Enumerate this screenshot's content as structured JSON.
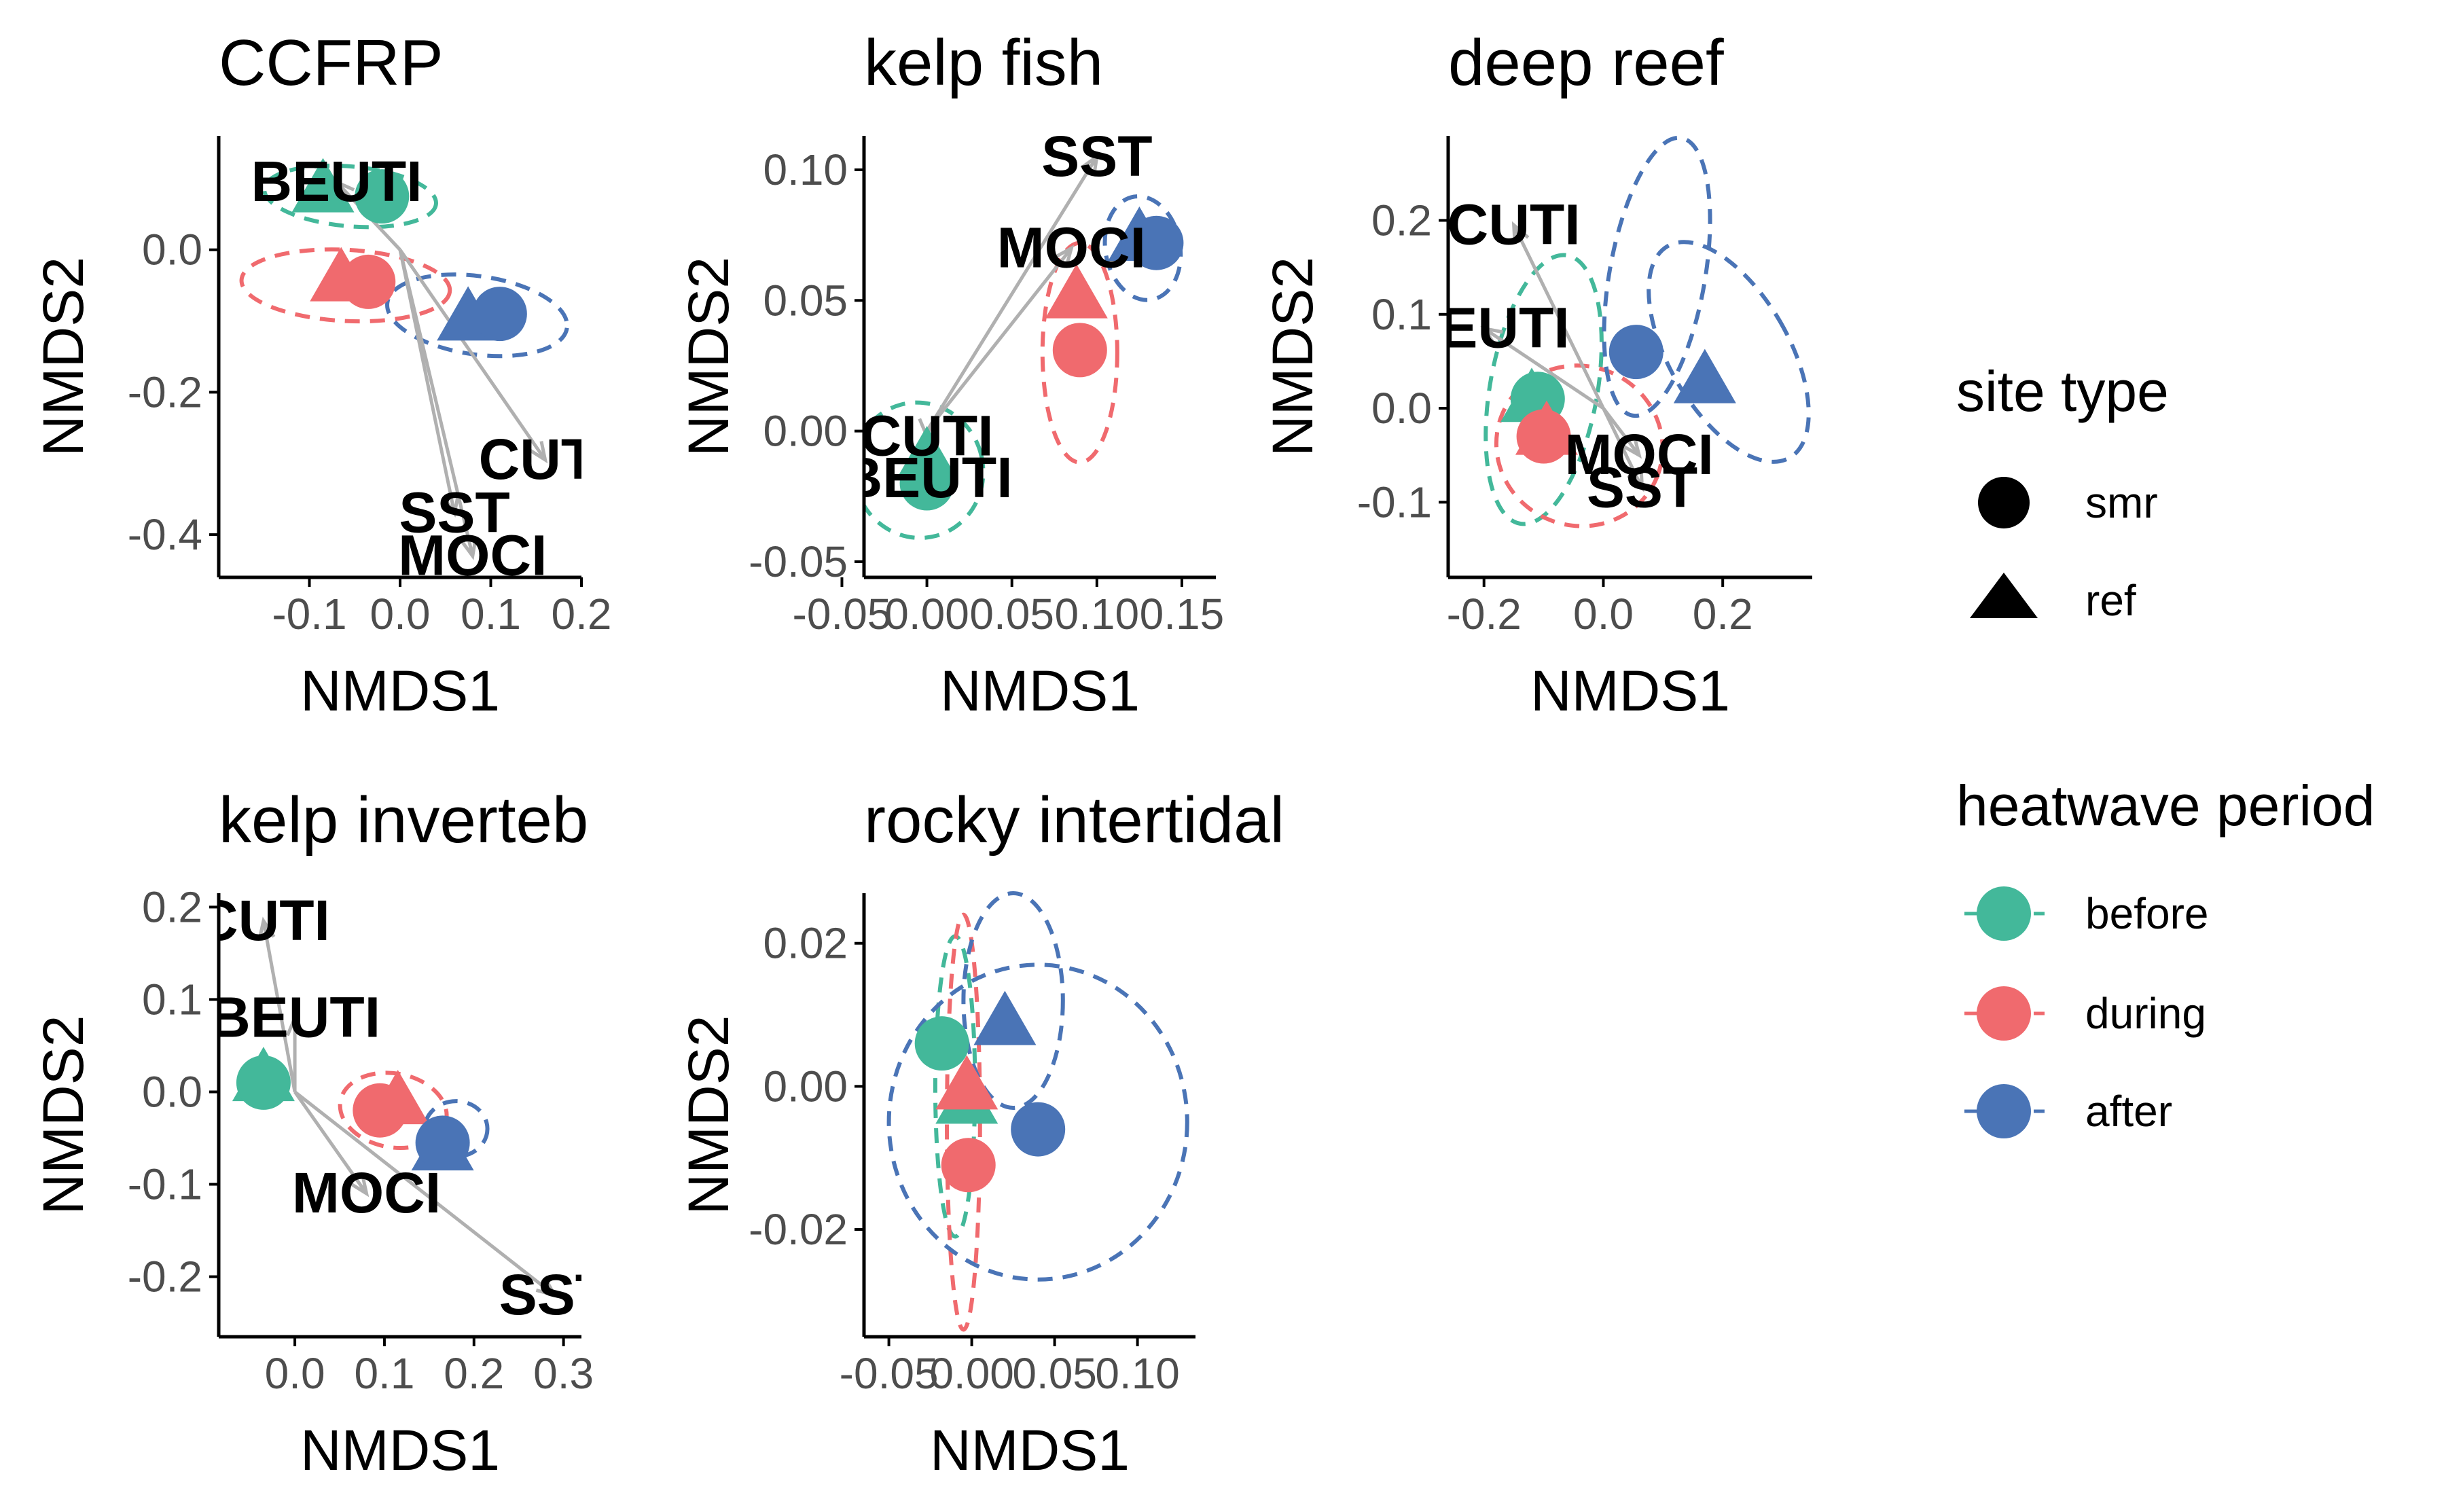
{
  "colors": {
    "before": "#43B89A",
    "during": "#F06A6E",
    "after": "#4A74B6",
    "arrow": "#b0b0b0",
    "axis": "#000000",
    "tick_text": "#4d4d4d"
  },
  "legend": {
    "shape_title": "site type",
    "shape_items": [
      {
        "label": "smr",
        "shape": "circle"
      },
      {
        "label": "ref",
        "shape": "triangle"
      }
    ],
    "color_title": "heatwave period",
    "color_items": [
      {
        "label": "before",
        "color_key": "before"
      },
      {
        "label": "during",
        "color_key": "during"
      },
      {
        "label": "after",
        "color_key": "after"
      }
    ]
  },
  "chart_data": [
    {
      "type": "scatter",
      "title": "CCFRP",
      "xlabel": "NMDS1",
      "ylabel": "NMDS2",
      "xlim": [
        -0.2,
        0.2
      ],
      "ylim": [
        -0.46,
        0.16
      ],
      "xticks": [
        -0.1,
        0.0,
        0.1,
        0.2
      ],
      "xtick_labels": [
        "-0.1",
        "0.0",
        "0.1",
        "0.2"
      ],
      "yticks": [
        -0.4,
        -0.2,
        0.0
      ],
      "ytick_labels": [
        "-0.4",
        "-0.2",
        "0.0"
      ],
      "points": [
        {
          "period": "before",
          "site": "ref",
          "x": -0.085,
          "y": 0.085
        },
        {
          "period": "before",
          "site": "smr",
          "x": -0.02,
          "y": 0.075
        },
        {
          "period": "during",
          "site": "ref",
          "x": -0.065,
          "y": -0.04
        },
        {
          "period": "during",
          "site": "smr",
          "x": -0.035,
          "y": -0.045
        },
        {
          "period": "after",
          "site": "ref",
          "x": 0.075,
          "y": -0.095
        },
        {
          "period": "after",
          "site": "smr",
          "x": 0.11,
          "y": -0.09
        }
      ],
      "ellipses": [
        {
          "period": "before",
          "cx": -0.055,
          "cy": 0.075,
          "rx": 0.095,
          "ry": 0.042,
          "rot": -5
        },
        {
          "period": "during",
          "cx": -0.06,
          "cy": -0.05,
          "rx": 0.115,
          "ry": 0.05,
          "rot": -3
        },
        {
          "period": "after",
          "cx": 0.085,
          "cy": -0.092,
          "rx": 0.1,
          "ry": 0.055,
          "rot": -8
        }
      ],
      "vectors": [
        {
          "label": "BEUTI",
          "x": -0.07,
          "y": 0.095
        },
        {
          "label": "CUTI",
          "x": 0.16,
          "y": -0.295
        },
        {
          "label": "SST",
          "x": 0.06,
          "y": -0.37
        },
        {
          "label": "MOCI",
          "x": 0.08,
          "y": -0.43
        }
      ]
    },
    {
      "type": "scatter",
      "title": "kelp fish",
      "xlabel": "NMDS1",
      "ylabel": "NMDS2",
      "xlim": [
        -0.037,
        0.17
      ],
      "ylim": [
        -0.056,
        0.113
      ],
      "xticks": [
        -0.05,
        0.0,
        0.05,
        0.1,
        0.15
      ],
      "xtick_labels": [
        "-0.05",
        "0.00",
        "0.05",
        "0.10",
        "0.15"
      ],
      "yticks": [
        -0.05,
        0.0,
        0.05,
        0.1
      ],
      "ytick_labels": [
        "-0.05",
        "0.00",
        "0.05",
        "0.10"
      ],
      "points": [
        {
          "period": "before",
          "site": "ref",
          "x": -0.0,
          "y": -0.01
        },
        {
          "period": "before",
          "site": "smr",
          "x": 0.0,
          "y": -0.02
        },
        {
          "period": "during",
          "site": "ref",
          "x": 0.088,
          "y": 0.052
        },
        {
          "period": "during",
          "site": "smr",
          "x": 0.09,
          "y": 0.031
        },
        {
          "period": "after",
          "site": "ref",
          "x": 0.125,
          "y": 0.074
        },
        {
          "period": "after",
          "site": "smr",
          "x": 0.135,
          "y": 0.072
        }
      ],
      "ellipses": [
        {
          "period": "before",
          "cx": -0.005,
          "cy": -0.015,
          "rx": 0.038,
          "ry": 0.026,
          "rot": 15
        },
        {
          "period": "during",
          "cx": 0.09,
          "cy": 0.03,
          "rx": 0.022,
          "ry": 0.042,
          "rot": 0
        },
        {
          "period": "after",
          "cx": 0.127,
          "cy": 0.07,
          "rx": 0.022,
          "ry": 0.02,
          "rot": 10
        }
      ],
      "vectors": [
        {
          "label": "SST",
          "x": 0.1,
          "y": 0.105
        },
        {
          "label": "MOCI",
          "x": 0.085,
          "y": 0.07
        },
        {
          "label": "CUTI",
          "x": 0.0,
          "y": -0.002
        },
        {
          "label": "BEUTI",
          "x": 0.0,
          "y": -0.018
        }
      ]
    },
    {
      "type": "scatter",
      "title": "deep reef",
      "xlabel": "NMDS1",
      "ylabel": "NMDS2",
      "xlim": [
        -0.26,
        0.35
      ],
      "ylim": [
        -0.18,
        0.29
      ],
      "xticks": [
        -0.2,
        0.0,
        0.2
      ],
      "xtick_labels": [
        "-0.2",
        "0.0",
        "0.2"
      ],
      "yticks": [
        -0.1,
        0.0,
        0.1,
        0.2
      ],
      "ytick_labels": [
        "-0.1",
        "0.0",
        "0.1",
        "0.2"
      ],
      "points": [
        {
          "period": "before",
          "site": "ref",
          "x": -0.12,
          "y": 0.01
        },
        {
          "period": "before",
          "site": "smr",
          "x": -0.11,
          "y": 0.01
        },
        {
          "period": "during",
          "site": "ref",
          "x": -0.095,
          "y": -0.025
        },
        {
          "period": "during",
          "site": "smr",
          "x": -0.1,
          "y": -0.03
        },
        {
          "period": "after",
          "site": "ref",
          "x": 0.17,
          "y": 0.03
        },
        {
          "period": "after",
          "site": "smr",
          "x": 0.055,
          "y": 0.06
        }
      ],
      "ellipses": [
        {
          "period": "before",
          "cx": -0.1,
          "cy": 0.02,
          "rx": 0.09,
          "ry": 0.145,
          "rot": -10
        },
        {
          "period": "during",
          "cx": -0.04,
          "cy": -0.04,
          "rx": 0.14,
          "ry": 0.085,
          "rot": -20
        },
        {
          "period": "after",
          "cx": 0.09,
          "cy": 0.14,
          "rx": 0.08,
          "ry": 0.15,
          "rot": -10
        },
        {
          "period": "after",
          "cx": 0.21,
          "cy": 0.06,
          "rx": 0.1,
          "ry": 0.13,
          "rot": 30
        }
      ],
      "vectors": [
        {
          "label": "CUTI",
          "x": -0.15,
          "y": 0.195
        },
        {
          "label": "BEUTI",
          "x": -0.2,
          "y": 0.085
        },
        {
          "label": "MOCI",
          "x": 0.06,
          "y": -0.05
        },
        {
          "label": "SST",
          "x": 0.065,
          "y": -0.085
        }
      ]
    },
    {
      "type": "scatter",
      "title": "kelp invertebrates",
      "xlabel": "NMDS1",
      "ylabel": "NMDS2",
      "xlim": [
        -0.085,
        0.32
      ],
      "ylim": [
        -0.265,
        0.215
      ],
      "xticks": [
        0.0,
        0.1,
        0.2,
        0.3
      ],
      "xtick_labels": [
        "0.0",
        "0.1",
        "0.2",
        "0.3"
      ],
      "yticks": [
        -0.2,
        -0.1,
        0.0,
        0.1,
        0.2
      ],
      "ytick_labels": [
        "-0.2",
        "-0.1",
        "0.0",
        "0.1",
        "0.2"
      ],
      "points": [
        {
          "period": "before",
          "site": "ref",
          "x": -0.035,
          "y": 0.015
        },
        {
          "period": "before",
          "site": "smr",
          "x": -0.035,
          "y": 0.01
        },
        {
          "period": "during",
          "site": "ref",
          "x": 0.115,
          "y": -0.01
        },
        {
          "period": "during",
          "site": "smr",
          "x": 0.095,
          "y": -0.02
        },
        {
          "period": "after",
          "site": "ref",
          "x": 0.165,
          "y": -0.06
        },
        {
          "period": "after",
          "site": "smr",
          "x": 0.165,
          "y": -0.055
        }
      ],
      "ellipses": [
        {
          "period": "before",
          "cx": -0.035,
          "cy": 0.015,
          "rx": 0.022,
          "ry": 0.02,
          "rot": 0
        },
        {
          "period": "during",
          "cx": 0.11,
          "cy": -0.02,
          "rx": 0.06,
          "ry": 0.04,
          "rot": -10
        },
        {
          "period": "after",
          "cx": 0.18,
          "cy": -0.04,
          "rx": 0.035,
          "ry": 0.03,
          "rot": 0
        }
      ],
      "vectors": [
        {
          "label": "CUTI",
          "x": -0.035,
          "y": 0.185
        },
        {
          "label": "BEUTI",
          "x": 0.0,
          "y": 0.08
        },
        {
          "label": "MOCI",
          "x": 0.08,
          "y": -0.11
        },
        {
          "label": "SST",
          "x": 0.29,
          "y": -0.22
        }
      ]
    },
    {
      "type": "scatter",
      "title": "rocky intertidal",
      "xlabel": "NMDS1",
      "ylabel": "NMDS2",
      "xlim": [
        -0.065,
        0.135
      ],
      "ylim": [
        -0.035,
        0.027
      ],
      "xticks": [
        -0.05,
        0.0,
        0.05,
        0.1
      ],
      "xtick_labels": [
        "-0.05",
        "0.00",
        "0.05",
        "0.10"
      ],
      "yticks": [
        -0.02,
        0.0,
        0.02
      ],
      "ytick_labels": [
        "-0.02",
        "0.00",
        "0.02"
      ],
      "points": [
        {
          "period": "before",
          "site": "ref",
          "x": -0.003,
          "y": -0.002
        },
        {
          "period": "before",
          "site": "smr",
          "x": -0.018,
          "y": 0.006
        },
        {
          "period": "during",
          "site": "ref",
          "x": -0.003,
          "y": 0.0
        },
        {
          "period": "during",
          "site": "smr",
          "x": -0.002,
          "y": -0.011
        },
        {
          "period": "after",
          "site": "ref",
          "x": 0.02,
          "y": 0.009
        },
        {
          "period": "after",
          "site": "smr",
          "x": 0.04,
          "y": -0.006
        }
      ],
      "ellipses": [
        {
          "period": "before",
          "cx": -0.01,
          "cy": 0.0,
          "rx": 0.012,
          "ry": 0.021,
          "rot": 0
        },
        {
          "period": "during",
          "cx": -0.005,
          "cy": -0.005,
          "rx": 0.01,
          "ry": 0.029,
          "rot": 0
        },
        {
          "period": "after",
          "cx": 0.025,
          "cy": 0.012,
          "rx": 0.03,
          "ry": 0.015,
          "rot": 0
        },
        {
          "period": "after",
          "cx": 0.04,
          "cy": -0.005,
          "rx": 0.09,
          "ry": 0.022,
          "rot": 0
        }
      ],
      "vectors": []
    }
  ]
}
